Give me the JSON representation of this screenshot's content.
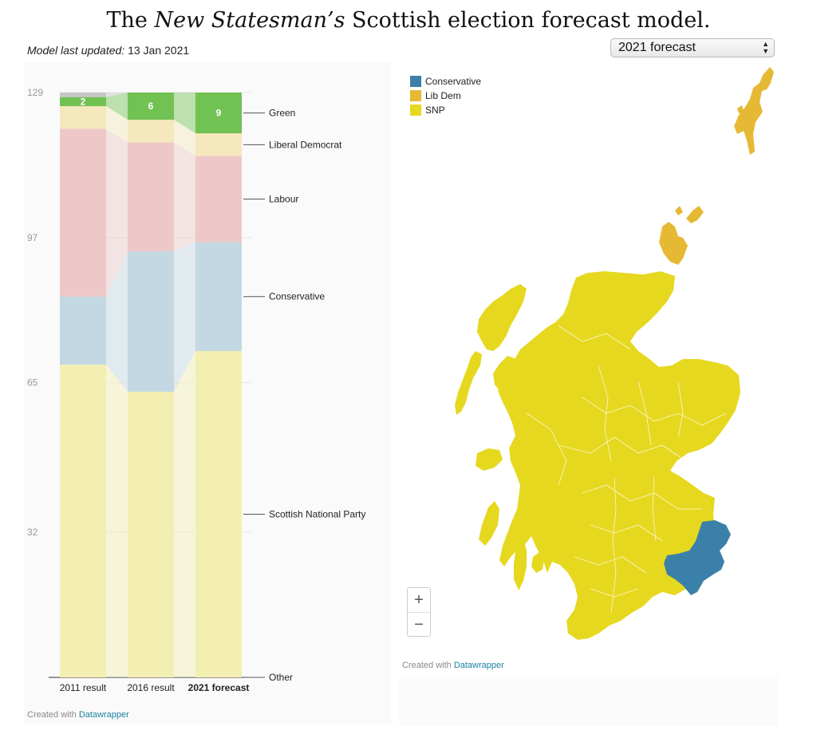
{
  "title": {
    "pre": "The ",
    "italic": "New Statesman’s",
    "post": " Scottish election forecast model."
  },
  "updated": {
    "label": "Model last updated:",
    "value": "13 Jan 2021"
  },
  "selector": {
    "value": "2021 forecast"
  },
  "chart_data": {
    "type": "stacked-bar",
    "categories": [
      "2011 result",
      "2016 result",
      "2021 forecast"
    ],
    "highlighted_category": "2021 forecast",
    "yticks": [
      129,
      97,
      65,
      32
    ],
    "ylim": [
      0,
      129
    ],
    "grid": true,
    "series": [
      {
        "name": "Scottish National Party",
        "values": [
          69,
          63,
          72
        ],
        "color": "#f3efb2"
      },
      {
        "name": "Conservative",
        "values": [
          15,
          31,
          24
        ],
        "color": "#c3d8e2"
      },
      {
        "name": "Labour",
        "values": [
          37,
          24,
          19
        ],
        "color": "#eec8c8"
      },
      {
        "name": "Liberal Democrat",
        "values": [
          5,
          5,
          5
        ],
        "color": "#f5e8bc"
      },
      {
        "name": "Green",
        "values": [
          2,
          6,
          9
        ],
        "color": "#72c153"
      },
      {
        "name": "Other",
        "values": [
          1,
          0,
          0
        ],
        "color": "#c6c6c6"
      }
    ],
    "data_labels": [
      {
        "series": "Green",
        "values": [
          "2",
          "6",
          "9"
        ]
      }
    ],
    "legend_position": "right-inline"
  },
  "chart_credit": {
    "prefix": "Created with ",
    "link": "Datawrapper"
  },
  "map": {
    "legend": [
      {
        "label": "Conservative",
        "color": "#3a80a8"
      },
      {
        "label": "Lib Dem",
        "color": "#e6b935"
      },
      {
        "label": "SNP",
        "color": "#e6d81f"
      }
    ],
    "zoom_in": "+",
    "zoom_out": "−",
    "credit": {
      "prefix": "Created with ",
      "link": "Datawrapper"
    }
  }
}
